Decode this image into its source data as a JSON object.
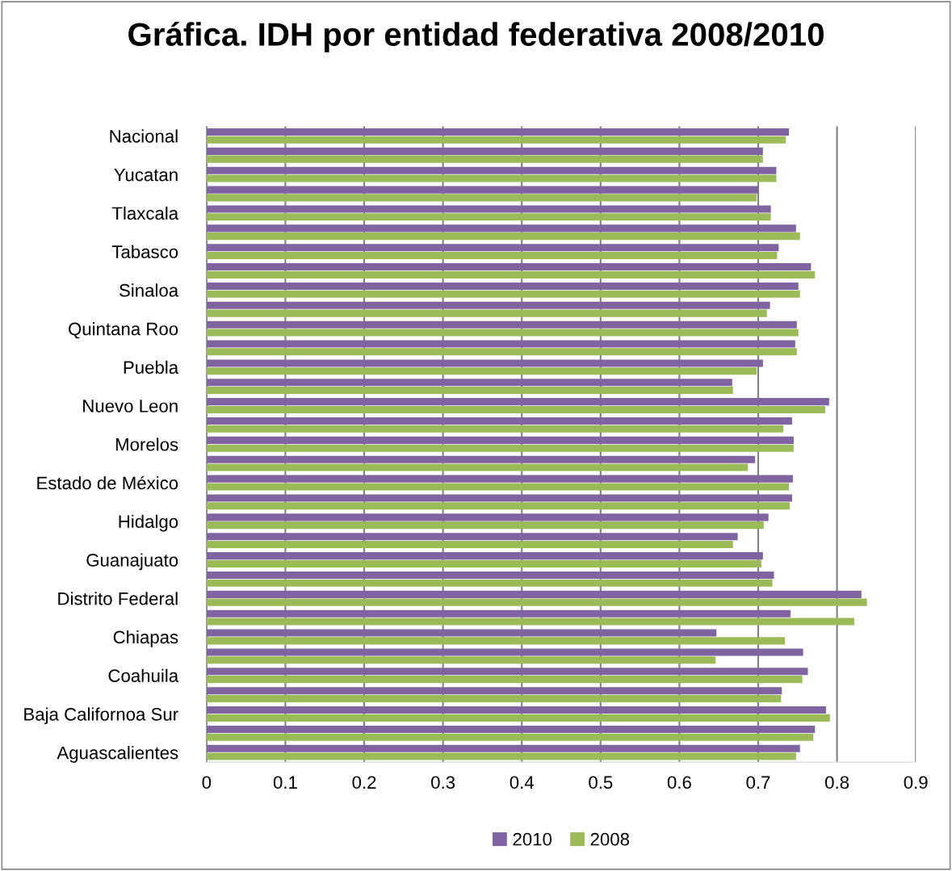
{
  "chart_data": {
    "type": "bar",
    "orientation": "horizontal",
    "title": "Gráfica. IDH por entidad federativa 2008/2010",
    "categories": [
      "Nacional",
      null,
      "Yucatan",
      null,
      "Tlaxcala",
      null,
      "Tabasco",
      null,
      "Sinaloa",
      null,
      "Quintana Roo",
      null,
      "Puebla",
      null,
      "Nuevo Leon",
      null,
      "Morelos",
      null,
      "Estado de México",
      null,
      "Hidalgo",
      null,
      "Guanajuato",
      null,
      "Distrito Federal",
      null,
      "Chiapas",
      null,
      "Coahuila",
      null,
      "Baja Californoa Sur",
      null,
      "Aguascalientes"
    ],
    "series": [
      {
        "name": "2010",
        "color": "#8064a2",
        "values": [
          0.739,
          0.706,
          0.723,
          0.7,
          0.716,
          0.748,
          0.726,
          0.767,
          0.751,
          0.715,
          0.749,
          0.747,
          0.706,
          0.667,
          0.79,
          0.743,
          0.745,
          0.696,
          0.744,
          0.743,
          0.713,
          0.674,
          0.706,
          0.72,
          0.831,
          0.741,
          0.647,
          0.757,
          0.763,
          0.73,
          0.786,
          0.772,
          0.753
        ]
      },
      {
        "name": "2008",
        "color": "#9bbb59",
        "values": [
          0.735,
          0.706,
          0.723,
          0.698,
          0.716,
          0.753,
          0.724,
          0.772,
          0.753,
          0.711,
          0.751,
          0.749,
          0.698,
          0.668,
          0.785,
          0.732,
          0.745,
          0.687,
          0.739,
          0.74,
          0.707,
          0.668,
          0.704,
          0.718,
          0.838,
          0.822,
          0.734,
          0.646,
          0.756,
          0.729,
          0.791,
          0.77,
          0.748
        ]
      }
    ],
    "xlim": [
      0,
      0.9
    ],
    "xticks": [
      0,
      0.1,
      0.2,
      0.3,
      0.4,
      0.5,
      0.6,
      0.7,
      0.8,
      0.9
    ],
    "grid": "x",
    "legend": "bottom"
  }
}
